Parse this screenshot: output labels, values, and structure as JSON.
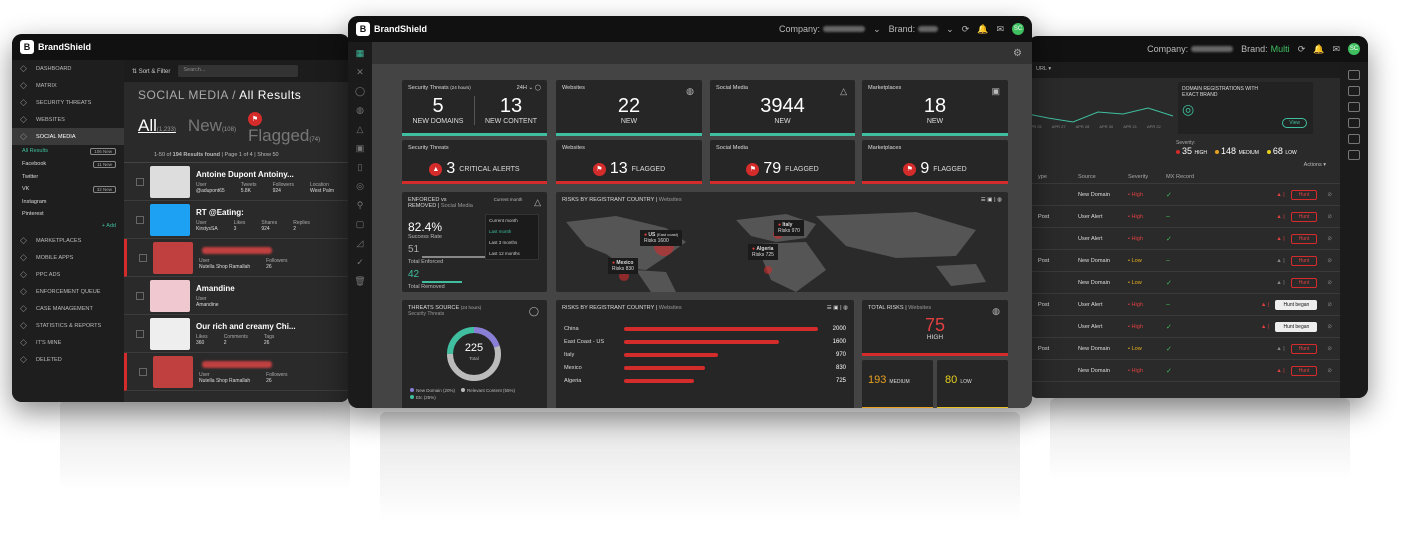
{
  "app": {
    "brand": "BrandShield"
  },
  "center_header": {
    "company_label": "Company:",
    "brand_label": "Brand:",
    "avatar": "SC"
  },
  "right_header": {
    "company_label": "Company:",
    "brand_label": "Brand:",
    "brand_value": "Multi"
  },
  "left": {
    "nav": [
      {
        "label": "DASHBOARD",
        "icon": "grid-icon"
      },
      {
        "label": "MATRIX",
        "icon": "matrix-icon"
      },
      {
        "label": "SECURITY THREATS",
        "icon": "shield-icon"
      },
      {
        "label": "WEBSITES",
        "icon": "globe-icon"
      },
      {
        "label": "SOCIAL MEDIA",
        "icon": "social-icon"
      }
    ],
    "social_sub": [
      {
        "label": "All Results",
        "tag": "106 New"
      },
      {
        "label": "Facebook",
        "tag": "11 New"
      },
      {
        "label": "Twitter",
        "tag": ""
      },
      {
        "label": "VK",
        "tag": "32 New"
      },
      {
        "label": "Instagram",
        "tag": ""
      },
      {
        "label": "Pinterest",
        "tag": ""
      }
    ],
    "add_label": "+ Add",
    "nav2": [
      {
        "label": "MARKETPLACES",
        "icon": "cart-icon"
      },
      {
        "label": "MOBILE APPS",
        "icon": "mobile-icon"
      },
      {
        "label": "PPC ADS",
        "icon": "ads-icon"
      },
      {
        "label": "ENFORCEMENT QUEUE",
        "icon": "queue-icon"
      },
      {
        "label": "CASE MANAGEMENT",
        "icon": "case-icon"
      },
      {
        "label": "STATISTICS & REPORTS",
        "icon": "chart-icon"
      },
      {
        "label": "IT'S MINE",
        "icon": "check-icon"
      },
      {
        "label": "DELETED",
        "icon": "trash-icon"
      }
    ],
    "toolbar": {
      "sort_filter": "Sort & Filter",
      "search_placeholder": "Search..."
    },
    "title_section": "SOCIAL MEDIA",
    "title_page": "All Results",
    "filters": {
      "all": "All",
      "all_count": "(1,233)",
      "new": "New",
      "new_count": "(108)",
      "flagged": "Flagged",
      "flagged_count": "(74)"
    },
    "results": {
      "prefix": "1-50 of",
      "count": "194 Results found",
      "page_label": "Page",
      "page": "1",
      "of": "of 4",
      "show_label": "Show",
      "show": "50"
    },
    "rows": [
      {
        "title": "Antoine Dupont Antoiny...",
        "m1l": "User",
        "m1v": "@adupont65",
        "m2l": "Tweets",
        "m2v": "5.8K",
        "m3l": "Followers",
        "m3v": "924",
        "m4l": "Location",
        "m4v": "West Palm",
        "flagged": false
      },
      {
        "title": "RT @Eating:",
        "m1l": "User",
        "m1v": "KirstysSA",
        "m2l": "Likes",
        "m2v": "3",
        "m3l": "Shares",
        "m3v": "924",
        "m4l": "Replies",
        "m4v": "2",
        "flagged": false
      },
      {
        "title": "",
        "m1l": "User",
        "m1v": "Nutella Shop Ramallah",
        "m2l": "Followers",
        "m2v": "26",
        "m3l": "",
        "m3v": "",
        "m4l": "",
        "m4v": "",
        "flagged": true
      },
      {
        "title": "Amandine",
        "m1l": "User",
        "m1v": "Amandine",
        "m2l": "",
        "m2v": "",
        "m3l": "",
        "m3v": "",
        "m4l": "",
        "m4v": "",
        "flagged": false
      },
      {
        "title": "Our rich and creamy Chi...",
        "m1l": "Likes",
        "m1v": "360",
        "m2l": "Comments",
        "m2v": "2",
        "m3l": "Tags",
        "m3v": "26",
        "m4l": "",
        "m4v": "",
        "flagged": false
      },
      {
        "title": "",
        "m1l": "User",
        "m1v": "Nutella Shop Ramallah",
        "m2l": "Followers",
        "m2v": "26",
        "m3l": "",
        "m3v": "",
        "m4l": "",
        "m4v": "",
        "flagged": true
      }
    ]
  },
  "center": {
    "sec_threats": {
      "title": "Security Threats",
      "title_sub": "(24 hours)",
      "period": "24H",
      "domains": "5",
      "domains_label": "NEW DOMAINS",
      "content": "13",
      "content_label": "NEW CONTENT"
    },
    "websites_new": {
      "title": "Websites",
      "value": "22",
      "label": "NEW"
    },
    "social_new": {
      "title": "Social Media",
      "value": "3944",
      "label": "NEW"
    },
    "market_new": {
      "title": "Marketplaces",
      "value": "18",
      "label": "NEW"
    },
    "sec_alerts": {
      "title": "Security Threats",
      "value": "3",
      "label": "CRITICAL ALERTS"
    },
    "websites_flag": {
      "title": "Websites",
      "value": "13",
      "label": "FLAGGED"
    },
    "social_flag": {
      "title": "Social Media",
      "value": "79",
      "label": "FLAGGED"
    },
    "market_flag": {
      "title": "Marketplaces",
      "value": "9",
      "label": "FLAGGED"
    },
    "enforced": {
      "title": "ENFORCED vs REMOVED",
      "title_sub": "Social Media",
      "rate": "82.4%",
      "rate_label": "Success Rate",
      "enforced": "51",
      "enforced_label": "Total Enforced",
      "removed": "42",
      "removed_label": "Total Removed",
      "period_label": "Current month",
      "options": [
        "Current month",
        "Last month",
        "Last 3 months",
        "Last 12 months"
      ]
    },
    "map": {
      "title": "RISKS BY REGISTRANT COUNTRY",
      "title_sub": "Websites",
      "pins": [
        {
          "country": "US",
          "note": "(East coast)",
          "risks_label": "Risks",
          "risks": "1600"
        },
        {
          "country": "Mexico",
          "note": "",
          "risks_label": "Risks",
          "risks": "830"
        },
        {
          "country": "Italy",
          "note": "",
          "risks_label": "Risks",
          "risks": "970"
        },
        {
          "country": "Algeria",
          "note": "",
          "risks_label": "Risks",
          "risks": "725"
        }
      ]
    },
    "threats_source": {
      "title": "THREATS SOURCE",
      "title_sub": "(24 hours)",
      "sub2": "Security Threats",
      "total": "225",
      "total_label": "Total",
      "legend": [
        {
          "label": "New Domain (20%)",
          "color": "#8a7fd6"
        },
        {
          "label": "Relevant Content (55%)",
          "color": "#bbbbbb"
        },
        {
          "label": "Etc (25%)",
          "color": "#3fbf9f"
        }
      ]
    },
    "country_bars": {
      "title": "RISKS BY REGISTRANT COUNTRY",
      "title_sub": "Websites",
      "rows": [
        {
          "country": "China",
          "value": 2000
        },
        {
          "country": "East Coast - US",
          "value": 1600
        },
        {
          "country": "Italy",
          "value": 970
        },
        {
          "country": "Mexico",
          "value": 830
        },
        {
          "country": "Algeria",
          "value": 725
        }
      ]
    },
    "total_risks": {
      "title": "TOTAL RISKS",
      "title_sub": "Websites",
      "high": "75",
      "high_label": "HIGH",
      "medium": "193",
      "medium_label": "MEDIUM",
      "low": "80",
      "low_label": "LOW"
    }
  },
  "right": {
    "filter_label": "URL",
    "chart_dates": [
      "APR 22",
      "APR 27",
      "APR 28",
      "APR 30",
      "APR 21",
      "APR 22"
    ],
    "domain_reg": {
      "title": "DOMAIN REGISTRATIONS WITH EXACT BRAND",
      "view": "View"
    },
    "severity": {
      "label": "Severity:",
      "high": "35",
      "high_label": "HIGH",
      "medium": "148",
      "medium_label": "MEDIUM",
      "low": "68",
      "low_label": "LOW"
    },
    "actions_label": "Actions",
    "headers": {
      "type": "ype",
      "source": "Source",
      "severity": "Severity",
      "mx": "MX Record"
    },
    "rows": [
      {
        "type": "",
        "source": "New Domain",
        "sev": "High",
        "mx": true,
        "hunt": "Hunt",
        "on": false
      },
      {
        "type": "Post",
        "source": "User Alert",
        "sev": "High",
        "mx": false,
        "hunt": "Hunt",
        "on": false
      },
      {
        "type": "",
        "source": "User Alert",
        "sev": "High",
        "mx": true,
        "hunt": "Hunt",
        "on": false
      },
      {
        "type": "Post",
        "source": "New Domain",
        "sev": "Low",
        "mx": false,
        "hunt": "Hunt",
        "on": false
      },
      {
        "type": "",
        "source": "New Domain",
        "sev": "Low",
        "mx": true,
        "hunt": "Hunt",
        "on": false
      },
      {
        "type": "Post",
        "source": "User Alert",
        "sev": "High",
        "mx": false,
        "hunt": "Hunt began",
        "on": true
      },
      {
        "type": "",
        "source": "User Alert",
        "sev": "High",
        "mx": true,
        "hunt": "Hunt began",
        "on": true
      },
      {
        "type": "Post",
        "source": "New Domain",
        "sev": "Low",
        "mx": true,
        "hunt": "Hunt",
        "on": false
      },
      {
        "type": "",
        "source": "New Domain",
        "sev": "High",
        "mx": true,
        "hunt": "Hunt",
        "on": false
      }
    ]
  }
}
